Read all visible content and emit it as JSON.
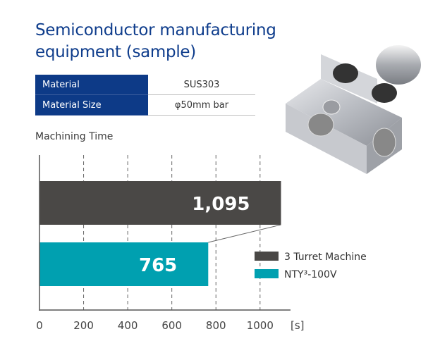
{
  "title_line1": "Semiconductor manufacturing",
  "title_line2": "equipment (sample)",
  "spec": [
    {
      "label": "Material",
      "value": "SUS303"
    },
    {
      "label": "Material Size",
      "value": "φ50mm bar"
    }
  ],
  "chart_title": "Machining Time",
  "colors": {
    "title": "#0f3d8c",
    "table_header": "#0d3a87",
    "dark_bar": "#4a4846",
    "teal_bar": "#00a0b0"
  },
  "chart_data": {
    "type": "bar",
    "orientation": "horizontal",
    "title": "Machining Time",
    "categories": [
      "3 Turret Machine",
      "NTY³-100V"
    ],
    "values": [
      1095,
      765
    ],
    "value_labels": [
      "1,095",
      "765"
    ],
    "xlabel": "[s]",
    "ylabel": "",
    "xlim": [
      0,
      1100
    ],
    "xticks": [
      0,
      200,
      400,
      600,
      800,
      1000
    ],
    "xtick_labels": [
      "0",
      "200",
      "400",
      "600",
      "800",
      "1000"
    ],
    "unit_label": "[s]",
    "grid": "vertical dashed",
    "legend": {
      "position": "right-middle",
      "entries": [
        "3 Turret Machine",
        "NTY³-100V"
      ]
    },
    "series_colors": [
      "#4a4846",
      "#00a0b0"
    ]
  },
  "legend": [
    {
      "label": "3 Turret Machine",
      "color": "#4a4846"
    },
    {
      "label": "NTY³-100V",
      "color": "#00a0b0"
    }
  ],
  "photo": {
    "alt": "machined stainless steel block part"
  }
}
